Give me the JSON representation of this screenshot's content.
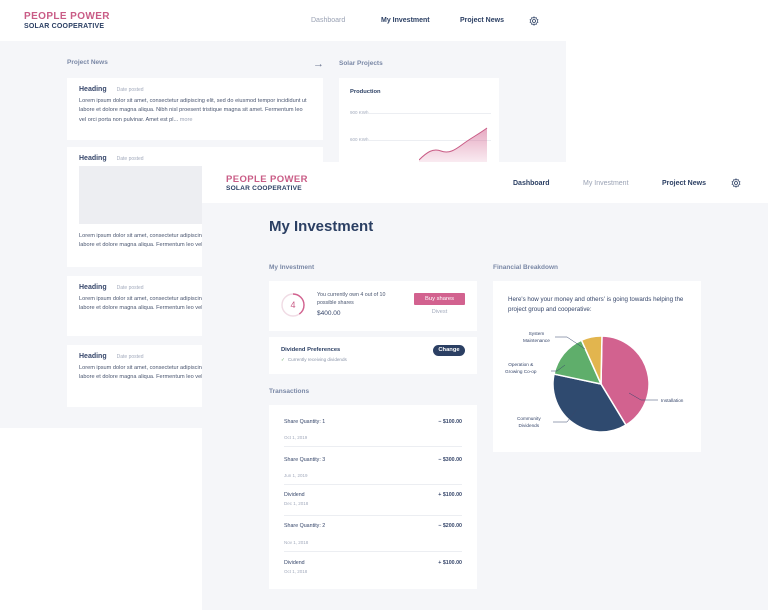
{
  "brand": {
    "line1": "PEOPLE POWER",
    "line2": "SOLAR COOPERATIVE"
  },
  "colors": {
    "pink": "#d2628f",
    "navy": "#2b3f63",
    "green": "#5fae6b",
    "gold": "#e2b54e",
    "page_bg": "#f5f6f9"
  },
  "back_screen": {
    "nav": {
      "dashboard": "Dashboard",
      "my_investment": "My Investment",
      "project_news": "Project News"
    },
    "project_news_label": "Project News",
    "solar_projects_label": "Solar Projects",
    "news": [
      {
        "heading": "Heading",
        "date": "Date posted",
        "body": "Lorem ipsum dolor sit amet, consectetur adipiscing elit, sed do eiusmod tempor incididunt ut labore et dolore magna aliqua. Nibh nisl proesent tristique magna sit amet. Fermentum leo vel orci porta non pulvinar. Amet est pl... ",
        "more": "more"
      },
      {
        "heading": "Heading",
        "date": "Date posted",
        "body": "Lorem ipsum dolor sit amet, consectetur adipiscing elit, sed do eiusmod tempor incididunt ut labore et dolore magna aliqua. Fermentum leo vel orci porta magna sit amet."
      },
      {
        "heading": "Heading",
        "date": "Date posted",
        "body": "Lorem ipsum dolor sit amet, consectetur adipiscing elit, sed do eiusmod tempor incididunt ut labore et dolore magna aliqua. Fermentum leo vel orci porta"
      },
      {
        "heading": "Heading",
        "date": "Date posted",
        "body": "Lorem ipsum dolor sit amet, consectetur adipiscing elit, sed do eiusmod tempor incididunt ut labore et dolore magna aliqua. Fermentum leo vel orci porta"
      }
    ],
    "production": {
      "title": "Production",
      "ticks": [
        "900 KWh",
        "600 KWh"
      ]
    }
  },
  "front_screen": {
    "nav": {
      "dashboard": "Dashboard",
      "my_investment": "My Investment",
      "project_news": "Project News"
    },
    "page_title": "My Investment",
    "my_investment_label": "My Investment",
    "shares": {
      "owned": 4,
      "possible": 10,
      "own_text": "You currently own 4 out of 10 possible shares",
      "amount": "$400.00",
      "buy_label": "Buy shares",
      "divest_label": "Divest"
    },
    "dividend": {
      "title": "Dividend Preferences",
      "status": "Currently receiving dividends",
      "change_label": "Change"
    },
    "transactions_label": "Transactions",
    "transactions": [
      {
        "name": "Share Quantity: 1",
        "date": "Oct 1, 2019",
        "amount": "− $100.00"
      },
      {
        "name": "Share Quantity: 3",
        "date": "Jun 1, 2019",
        "amount": "− $300.00"
      },
      {
        "name": "Dividend",
        "date": "Dec 1, 2018",
        "amount": "+ $100.00"
      },
      {
        "name": "Share Quantity: 2",
        "date": "Nov 1, 2018",
        "amount": "− $200.00"
      },
      {
        "name": "Dividend",
        "date": "Oct 1, 2018",
        "amount": "+ $100.00"
      }
    ],
    "financial_label": "Financial Breakdown",
    "financial_text": "Here's how your money and others' is going towards helping the project group and cooperative:"
  },
  "chart_data": {
    "type": "pie",
    "categories": [
      "Installation",
      "Community Dividends",
      "Operation & Growing Co-op",
      "System Maintenance"
    ],
    "values": [
      41,
      37,
      15,
      7
    ],
    "colors": [
      "#d2628f",
      "#2f4a6f",
      "#5fae6b",
      "#e2b54e"
    ]
  }
}
